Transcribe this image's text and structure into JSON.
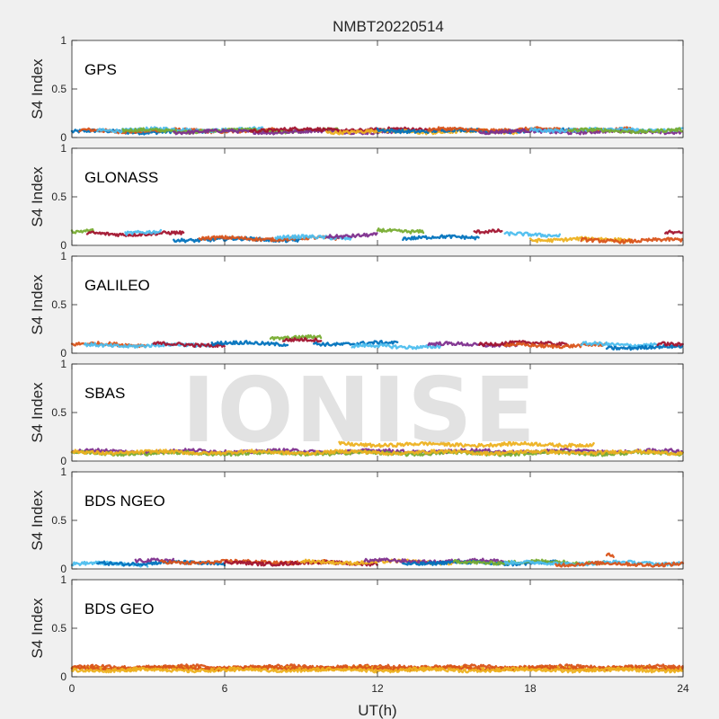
{
  "chart_data": {
    "type": "scatter",
    "title": "NMBT20220514",
    "xlabel": "UT(h)",
    "ylabel": "S4 Index",
    "xlim": [
      0,
      24
    ],
    "ylim": [
      0,
      1
    ],
    "x_ticks": [
      "0",
      "6",
      "12",
      "18",
      "24"
    ],
    "y_ticks": [
      "0",
      "0.5",
      "1"
    ],
    "watermark": "IONISE",
    "palette": [
      "#0072bd",
      "#d95319",
      "#edb120",
      "#7e2f8e",
      "#77ac30",
      "#4dbeee",
      "#a2142f"
    ],
    "panels": [
      {
        "label": "GPS",
        "tracks": [
          {
            "t0": 0.0,
            "t1": 5.5,
            "base": 0.06,
            "color": 0
          },
          {
            "t0": 0.3,
            "t1": 8.0,
            "base": 0.07,
            "color": 1
          },
          {
            "t0": 1.0,
            "t1": 7.5,
            "base": 0.08,
            "color": 5
          },
          {
            "t0": 2.0,
            "t1": 10.5,
            "base": 0.07,
            "color": 4
          },
          {
            "t0": 4.0,
            "t1": 13.0,
            "base": 0.06,
            "color": 3
          },
          {
            "t0": 7.0,
            "t1": 15.0,
            "base": 0.08,
            "color": 6
          },
          {
            "t0": 10.0,
            "t1": 17.5,
            "base": 0.06,
            "color": 2
          },
          {
            "t0": 12.0,
            "t1": 20.0,
            "base": 0.07,
            "color": 0
          },
          {
            "t0": 14.0,
            "t1": 22.0,
            "base": 0.08,
            "color": 1
          },
          {
            "t0": 16.0,
            "t1": 24.0,
            "base": 0.06,
            "color": 3
          },
          {
            "t0": 18.0,
            "t1": 24.0,
            "base": 0.08,
            "color": 5
          },
          {
            "t0": 19.5,
            "t1": 24.0,
            "base": 0.07,
            "color": 4
          }
        ]
      },
      {
        "label": "GLONASS",
        "tracks": [
          {
            "t0": 0.0,
            "t1": 0.9,
            "base": 0.14,
            "color": 4
          },
          {
            "t0": 0.6,
            "t1": 4.4,
            "base": 0.12,
            "color": 6
          },
          {
            "t0": 2.1,
            "t1": 3.5,
            "base": 0.13,
            "color": 5
          },
          {
            "t0": 4.0,
            "t1": 9.0,
            "base": 0.06,
            "color": 0
          },
          {
            "t0": 5.0,
            "t1": 10.5,
            "base": 0.07,
            "color": 1
          },
          {
            "t0": 8.0,
            "t1": 11.0,
            "base": 0.08,
            "color": 5
          },
          {
            "t0": 10.0,
            "t1": 12.0,
            "base": 0.1,
            "color": 3
          },
          {
            "t0": 12.0,
            "t1": 13.8,
            "base": 0.15,
            "color": 4
          },
          {
            "t0": 13.0,
            "t1": 16.0,
            "base": 0.08,
            "color": 0
          },
          {
            "t0": 15.8,
            "t1": 16.9,
            "base": 0.15,
            "color": 6
          },
          {
            "t0": 17.0,
            "t1": 19.2,
            "base": 0.11,
            "color": 5
          },
          {
            "t0": 18.0,
            "t1": 22.0,
            "base": 0.06,
            "color": 2
          },
          {
            "t0": 20.0,
            "t1": 24.0,
            "base": 0.05,
            "color": 1
          },
          {
            "t0": 23.3,
            "t1": 24.0,
            "base": 0.13,
            "color": 6
          }
        ]
      },
      {
        "label": "GALILEO",
        "tracks": [
          {
            "t0": 0.0,
            "t1": 3.0,
            "base": 0.09,
            "color": 1
          },
          {
            "t0": 0.5,
            "t1": 5.5,
            "base": 0.08,
            "color": 5
          },
          {
            "t0": 3.2,
            "t1": 6.0,
            "base": 0.09,
            "color": 6
          },
          {
            "t0": 5.5,
            "t1": 8.5,
            "base": 0.1,
            "color": 0
          },
          {
            "t0": 7.8,
            "t1": 9.8,
            "base": 0.16,
            "color": 4
          },
          {
            "t0": 8.3,
            "t1": 9.8,
            "base": 0.13,
            "color": 6
          },
          {
            "t0": 9.5,
            "t1": 12.8,
            "base": 0.1,
            "color": 0
          },
          {
            "t0": 11.0,
            "t1": 14.5,
            "base": 0.07,
            "color": 5
          },
          {
            "t0": 14.0,
            "t1": 17.5,
            "base": 0.09,
            "color": 3
          },
          {
            "t0": 16.0,
            "t1": 19.5,
            "base": 0.1,
            "color": 6
          },
          {
            "t0": 17.0,
            "t1": 21.0,
            "base": 0.08,
            "color": 1
          },
          {
            "t0": 20.0,
            "t1": 23.0,
            "base": 0.09,
            "color": 5
          },
          {
            "t0": 21.0,
            "t1": 24.0,
            "base": 0.06,
            "color": 0
          },
          {
            "t0": 23.0,
            "t1": 24.0,
            "base": 0.09,
            "color": 6
          }
        ]
      },
      {
        "label": "SBAS",
        "tracks": [
          {
            "t0": 0.0,
            "t1": 24.0,
            "base": 0.1,
            "color": 3
          },
          {
            "t0": 0.0,
            "t1": 24.0,
            "base": 0.08,
            "color": 4
          },
          {
            "t0": 0.0,
            "t1": 24.0,
            "base": 0.09,
            "color": 2
          },
          {
            "t0": 10.5,
            "t1": 20.5,
            "base": 0.17,
            "color": 2
          }
        ]
      },
      {
        "label": "BDS NGEO",
        "tracks": [
          {
            "t0": 0.0,
            "t1": 3.0,
            "base": 0.05,
            "color": 5
          },
          {
            "t0": 1.0,
            "t1": 6.0,
            "base": 0.06,
            "color": 0
          },
          {
            "t0": 2.5,
            "t1": 4.0,
            "base": 0.08,
            "color": 3
          },
          {
            "t0": 3.5,
            "t1": 10.0,
            "base": 0.07,
            "color": 1
          },
          {
            "t0": 6.0,
            "t1": 12.0,
            "base": 0.06,
            "color": 6
          },
          {
            "t0": 9.0,
            "t1": 15.0,
            "base": 0.07,
            "color": 2
          },
          {
            "t0": 11.5,
            "t1": 17.0,
            "base": 0.08,
            "color": 3
          },
          {
            "t0": 13.0,
            "t1": 19.0,
            "base": 0.06,
            "color": 0
          },
          {
            "t0": 15.0,
            "t1": 21.0,
            "base": 0.07,
            "color": 4
          },
          {
            "t0": 17.0,
            "t1": 24.0,
            "base": 0.06,
            "color": 5
          },
          {
            "t0": 19.0,
            "t1": 24.0,
            "base": 0.05,
            "color": 1
          },
          {
            "t0": 21.0,
            "t1": 21.3,
            "base": 0.14,
            "color": 1
          }
        ]
      },
      {
        "label": "BDS GEO",
        "tracks": [
          {
            "t0": 0.0,
            "t1": 24.0,
            "base": 0.1,
            "color": 1
          },
          {
            "t0": 0.0,
            "t1": 24.0,
            "base": 0.08,
            "color": 2
          },
          {
            "t0": 0.0,
            "t1": 24.0,
            "base": 0.09,
            "color": 1
          },
          {
            "t0": 0.0,
            "t1": 24.0,
            "base": 0.07,
            "color": 2
          }
        ]
      }
    ]
  }
}
